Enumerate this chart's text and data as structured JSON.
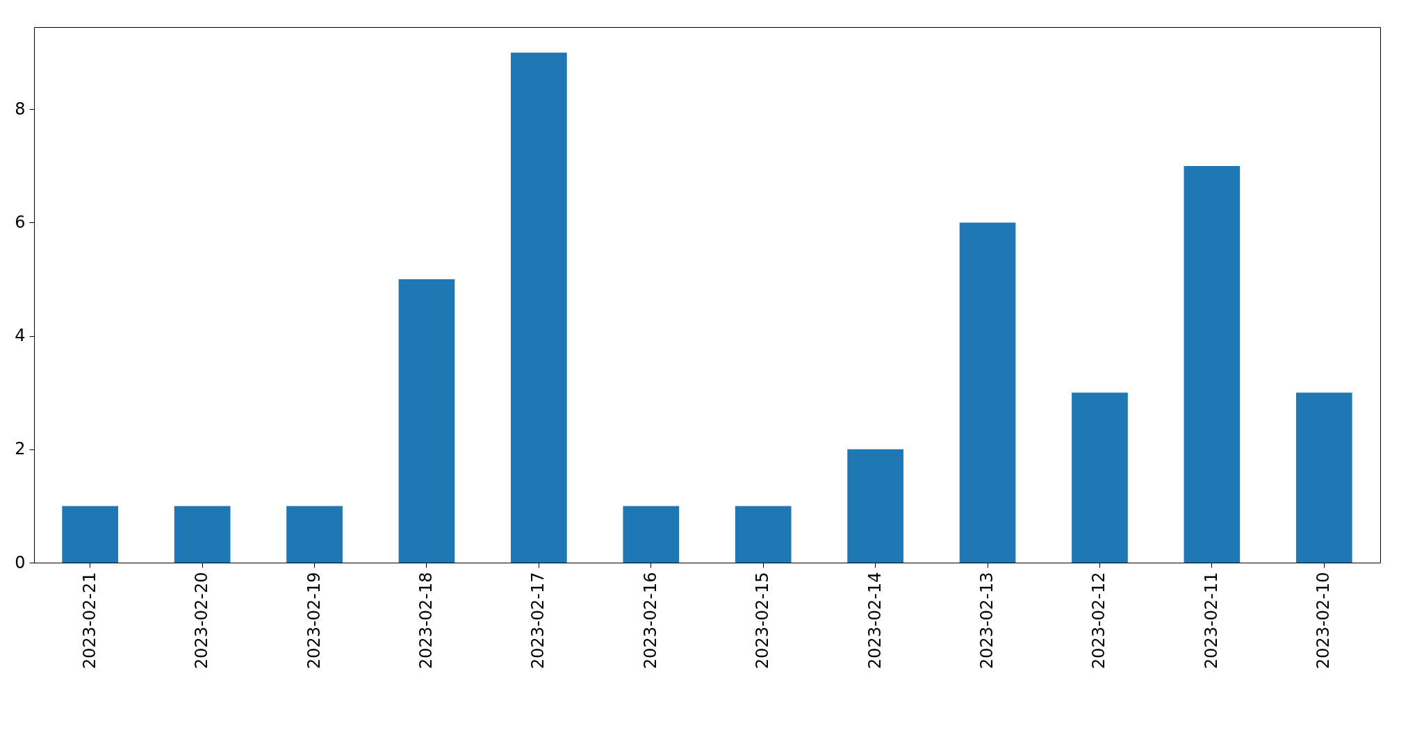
{
  "chart_data": {
    "type": "bar",
    "categories": [
      "2023-02-21",
      "2023-02-20",
      "2023-02-19",
      "2023-02-18",
      "2023-02-17",
      "2023-02-16",
      "2023-02-15",
      "2023-02-14",
      "2023-02-13",
      "2023-02-12",
      "2023-02-11",
      "2023-02-10"
    ],
    "values": [
      1,
      1,
      1,
      5,
      9,
      1,
      1,
      2,
      6,
      3,
      7,
      3
    ],
    "color": "#1f77b4",
    "ylim": [
      0,
      9.45
    ],
    "yticks": [
      0,
      2,
      4,
      6,
      8
    ]
  }
}
